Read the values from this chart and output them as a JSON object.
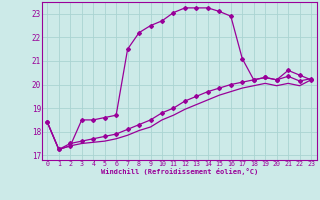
{
  "xlabel": "Windchill (Refroidissement éolien,°C)",
  "bg_color": "#cceae8",
  "grid_color": "#aad4d2",
  "line_color": "#990099",
  "xlim": [
    -0.5,
    23.5
  ],
  "ylim": [
    16.8,
    23.5
  ],
  "yticks": [
    17,
    18,
    19,
    20,
    21,
    22,
    23
  ],
  "xticks": [
    0,
    1,
    2,
    3,
    4,
    5,
    6,
    7,
    8,
    9,
    10,
    11,
    12,
    13,
    14,
    15,
    16,
    17,
    18,
    19,
    20,
    21,
    22,
    23
  ],
  "line1_x": [
    0,
    1,
    2,
    3,
    4,
    5,
    6,
    7,
    8,
    9,
    10,
    11,
    12,
    13,
    14,
    15,
    16,
    17,
    18,
    19,
    20,
    21,
    22,
    23
  ],
  "line1_y": [
    18.4,
    17.25,
    17.4,
    18.5,
    18.5,
    18.6,
    18.7,
    21.5,
    22.2,
    22.5,
    22.7,
    23.05,
    23.25,
    23.25,
    23.25,
    23.1,
    22.9,
    21.1,
    20.2,
    20.3,
    20.2,
    20.6,
    20.4,
    20.2
  ],
  "line2_x": [
    0,
    1,
    2,
    3,
    4,
    5,
    6,
    7,
    8,
    9,
    10,
    11,
    12,
    13,
    14,
    15,
    16,
    17,
    18,
    19,
    20,
    21,
    22,
    23
  ],
  "line2_y": [
    18.4,
    17.25,
    17.5,
    17.6,
    17.7,
    17.8,
    17.9,
    18.1,
    18.3,
    18.5,
    18.8,
    19.0,
    19.3,
    19.5,
    19.7,
    19.85,
    20.0,
    20.1,
    20.2,
    20.3,
    20.2,
    20.35,
    20.15,
    20.25
  ],
  "line3_x": [
    0,
    1,
    2,
    3,
    4,
    5,
    6,
    7,
    8,
    9,
    10,
    11,
    12,
    13,
    14,
    15,
    16,
    17,
    18,
    19,
    20,
    21,
    22,
    23
  ],
  "line3_y": [
    18.4,
    17.25,
    17.4,
    17.5,
    17.55,
    17.6,
    17.7,
    17.85,
    18.05,
    18.2,
    18.5,
    18.7,
    18.95,
    19.15,
    19.35,
    19.55,
    19.7,
    19.85,
    19.95,
    20.05,
    19.95,
    20.05,
    19.95,
    20.2
  ]
}
